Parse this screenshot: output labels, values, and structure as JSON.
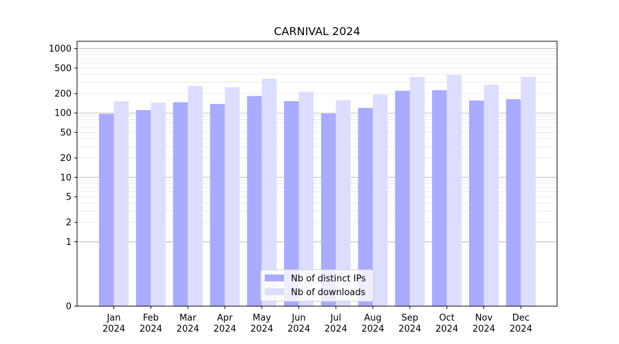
{
  "chart_data": {
    "type": "bar",
    "title": "CARNIVAL 2024",
    "xlabel": "",
    "ylabel": "",
    "y_scale": "symlog",
    "ylim": [
      0,
      1300
    ],
    "y_ticks": [
      0,
      1,
      2,
      5,
      10,
      20,
      50,
      100,
      200,
      500,
      1000
    ],
    "grid": true,
    "legend_position": "bottom-center",
    "categories": [
      [
        "Jan",
        "2024"
      ],
      [
        "Feb",
        "2024"
      ],
      [
        "Mar",
        "2024"
      ],
      [
        "Apr",
        "2024"
      ],
      [
        "May",
        "2024"
      ],
      [
        "Jun",
        "2024"
      ],
      [
        "Jul",
        "2024"
      ],
      [
        "Aug",
        "2024"
      ],
      [
        "Sep",
        "2024"
      ],
      [
        "Oct",
        "2024"
      ],
      [
        "Nov",
        "2024"
      ],
      [
        "Dec",
        "2024"
      ]
    ],
    "series": [
      {
        "name": "Nb of distinct IPs",
        "color": "#aaaaff",
        "values": [
          97,
          111,
          147,
          138,
          184,
          153,
          98,
          120,
          222,
          226,
          156,
          164
        ]
      },
      {
        "name": "Nb of downloads",
        "color": "#ddddff",
        "values": [
          153,
          144,
          263,
          252,
          340,
          213,
          158,
          193,
          363,
          388,
          275,
          366
        ]
      }
    ]
  }
}
